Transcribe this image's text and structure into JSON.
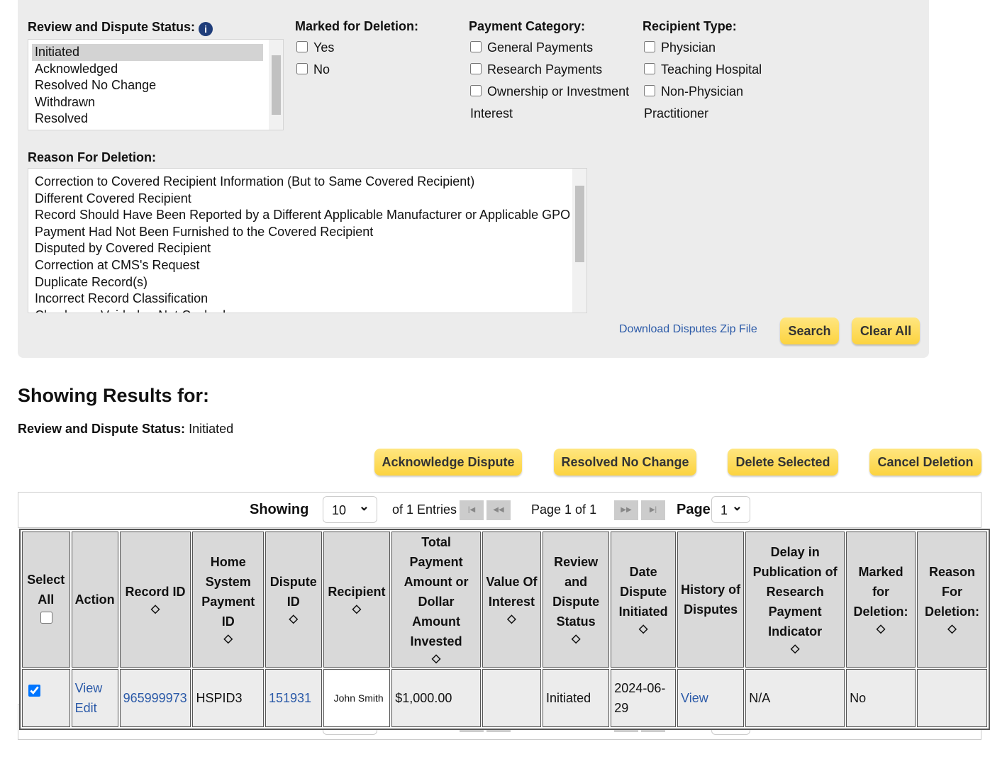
{
  "filters": {
    "status": {
      "label": "Review and Dispute Status:",
      "options": [
        "Initiated",
        "Acknowledged",
        "Resolved No Change",
        "Withdrawn",
        "Resolved"
      ]
    },
    "deletion": {
      "label": "Marked for Deletion:",
      "options": [
        "Yes",
        "No"
      ]
    },
    "category": {
      "label": "Payment Category:",
      "options": [
        "General Payments",
        "Research Payments",
        "Ownership or Investment Interest"
      ]
    },
    "recipient": {
      "label": "Recipient Type:",
      "options": [
        "Physician",
        "Teaching Hospital",
        "Non-Physician Practitioner"
      ]
    },
    "reason": {
      "label": "Reason For Deletion:",
      "options": [
        "Correction to Covered Recipient Information (But to Same Covered Recipient)",
        "Different Covered Recipient",
        "Record Should Have Been Reported by a Different Applicable Manufacturer or Applicable GPO",
        "Payment Had Not Been Furnished to the Covered Recipient",
        "Disputed by Covered Recipient",
        "Correction at CMS's Request",
        "Duplicate Record(s)",
        "Incorrect Record Classification",
        "Check was Voided or Not Cashed"
      ]
    }
  },
  "filter_actions": {
    "download": "Download Disputes Zip File",
    "search": "Search",
    "clear": "Clear All"
  },
  "results": {
    "title": "Showing Results for:",
    "criteria_label": "Review and Dispute Status:",
    "criteria_value": "Initiated"
  },
  "buttons": [
    "Acknowledge Dispute",
    "Resolved No Change",
    "Delete Selected",
    "Cancel Deletion"
  ],
  "pager": {
    "showing": "Showing",
    "page_size": "10",
    "of_entries": "of 1 Entries",
    "page_of": "Page 1 of 1",
    "page": "Page",
    "page_number": "1"
  },
  "table": {
    "headers": [
      "Select All",
      "Action",
      "Record ID",
      "Home System Payment ID",
      "Dispute ID",
      "Recipient",
      "Total Payment Amount or Dollar Amount Invested",
      "Value Of Interest",
      "Review and Dispute Status",
      "Date Dispute Initiated",
      "History of Disputes",
      "Delay in Publication of Research Payment Indicator",
      "Marked for Deletion:",
      "Reason For Deletion:"
    ],
    "rows": [
      {
        "view": "View",
        "edit": "Edit",
        "record_id": "965999973",
        "home_id": "HSPID3",
        "dispute_id": "151931",
        "recipient": "John Smith",
        "amount": "$1,000.00",
        "status": "Initiated",
        "date": "2024-06-29",
        "history": "View",
        "delay": "N/A",
        "marked": "No"
      }
    ]
  }
}
